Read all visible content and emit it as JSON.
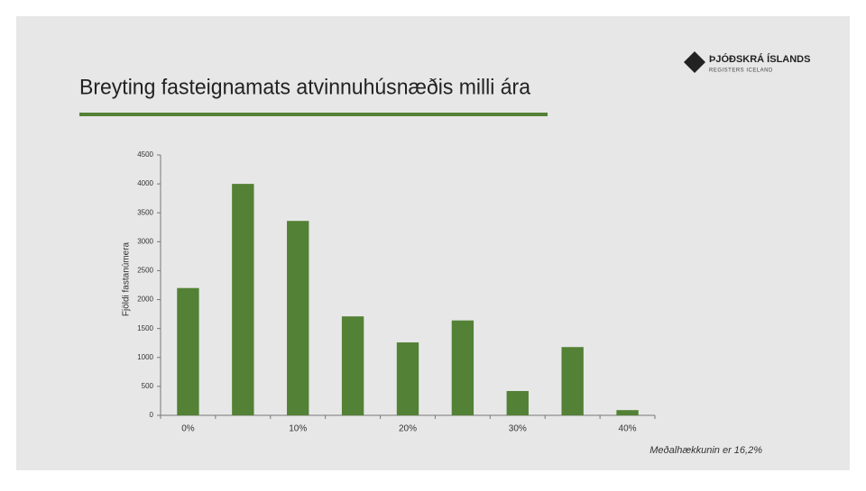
{
  "header": {
    "title": "Breyting fasteignamats atvinnuhúsnæðis milli ára",
    "logo_name": "ÞJÓÐSKRÁ ÍSLANDS",
    "logo_sub": "REGISTERS ICELAND"
  },
  "chart_data": {
    "type": "bar",
    "y_label": "Fjöldi fastanúmera",
    "categories": [
      "0%",
      null,
      "10%",
      null,
      "20%",
      null,
      "30%",
      null,
      "40%"
    ],
    "values": [
      2200,
      4000,
      3360,
      1710,
      1260,
      1640,
      420,
      1180,
      90
    ],
    "color": "#538135",
    "ylim": [
      0,
      4500
    ],
    "yticks": [
      0,
      500,
      1000,
      1500,
      2000,
      2500,
      3000,
      3500,
      4000,
      4500
    ],
    "grid": false
  },
  "footnote": "Meðalhækkunin er 16,2%"
}
